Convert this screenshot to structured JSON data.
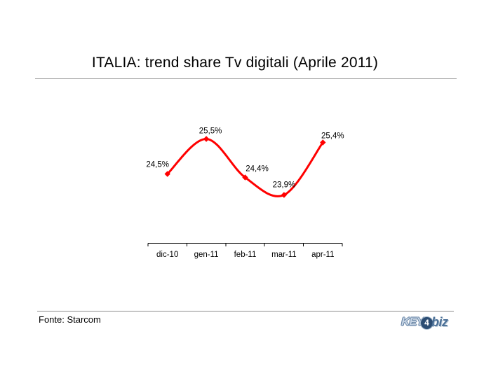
{
  "title": "ITALIA: trend share Tv digitali (Aprile 2011)",
  "footer": {
    "source": "Fonte: Starcom"
  },
  "logo": {
    "part_key": "KEY",
    "part_four": "4",
    "part_biz": "biz"
  },
  "chart_data": {
    "type": "line",
    "title": "ITALIA: trend share Tv digitali (Aprile 2011)",
    "categories": [
      "dic-10",
      "gen-11",
      "feb-11",
      "mar-11",
      "apr-11"
    ],
    "values": [
      24.5,
      25.5,
      24.4,
      23.9,
      25.4
    ],
    "data_labels": [
      "24,5%",
      "25,5%",
      "24,4%",
      "23,9%",
      "25,4%"
    ],
    "series_color": "#ff0000",
    "axis_color": "#000000",
    "line_style": "smooth",
    "marker_style": "diamond",
    "ylim": [
      23.5,
      26.0
    ],
    "grid": false,
    "legend": "none",
    "xlabel": "",
    "ylabel": "",
    "source": "Fonte: Starcom"
  }
}
